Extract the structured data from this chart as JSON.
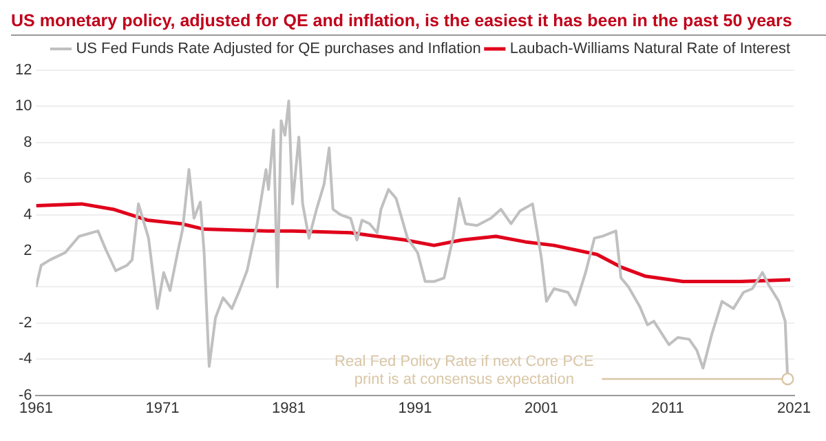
{
  "chart_data": {
    "type": "line",
    "title": "US monetary policy, adjusted for QE and inflation, is the easiest it has been in the past 50 years",
    "xlim": [
      1961,
      2021
    ],
    "xticks": [
      1961,
      1971,
      1981,
      1991,
      2001,
      2011,
      2021
    ],
    "ylim": [
      -6,
      12
    ],
    "yticks": [
      -6,
      -4,
      -2,
      {
        "value": 0,
        "label": null
      },
      2,
      4,
      6,
      8,
      10,
      12
    ],
    "grid": "y",
    "legend": "top right",
    "marker": "none",
    "line_style": "solid",
    "series": [
      {
        "name": "US Fed Funds Rate Adjusted for QE purchases and Inflation",
        "color": "#c0c0c0",
        "x": [
          1961,
          1961.4,
          1962.1,
          1963.3,
          1964.4,
          1965.9,
          1966.5,
          1967.3,
          1968.2,
          1968.6,
          1969.1,
          1969.9,
          1970.6,
          1971.1,
          1971.6,
          1972.2,
          1972.6,
          1973.1,
          1973.5,
          1974.0,
          1974.3,
          1974.7,
          1975.2,
          1975.8,
          1976.5,
          1977.1,
          1977.7,
          1978.5,
          1979.2,
          1979.4,
          1979.8,
          1980.1,
          1980.4,
          1980.7,
          1981.0,
          1981.3,
          1981.8,
          1982.1,
          1982.6,
          1983.2,
          1983.8,
          1984.2,
          1984.5,
          1985.1,
          1985.9,
          1986.4,
          1986.8,
          1987.4,
          1988.0,
          1988.3,
          1988.9,
          1989.5,
          1990.4,
          1991.2,
          1991.8,
          1992.5,
          1993.3,
          1994.0,
          1994.5,
          1995.0,
          1995.9,
          1997.0,
          1997.8,
          1998.6,
          1999.3,
          2000.3,
          2001.0,
          2001.4,
          2002.0,
          2003.1,
          2003.7,
          2004.5,
          2005.2,
          2005.8,
          2006.9,
          2007.3,
          2007.9,
          2008.8,
          2009.4,
          2009.9,
          2011.1,
          2011.8,
          2012.7,
          2013.3,
          2013.8,
          2014.5,
          2015.3,
          2016.2,
          2017.0,
          2017.7,
          2018.5,
          2019.0,
          2019.8,
          2020.3,
          2020.5
        ],
        "values": [
          0,
          1.2,
          1.5,
          1.9,
          2.8,
          3.1,
          2.1,
          0.9,
          1.2,
          1.5,
          4.6,
          2.7,
          -1.2,
          0.8,
          -0.2,
          1.9,
          3.2,
          6.5,
          3.8,
          4.7,
          1.9,
          -4.4,
          -1.7,
          -0.6,
          -1.2,
          -0.2,
          0.9,
          3.5,
          6.5,
          5.4,
          8.7,
          0,
          9.2,
          8.4,
          10.3,
          4.6,
          8.3,
          4.6,
          2.7,
          4.3,
          5.7,
          7.7,
          4.3,
          4.0,
          3.8,
          2.6,
          3.7,
          3.5,
          3.0,
          4.3,
          5.4,
          4.9,
          2.7,
          1.9,
          0.3,
          0.3,
          0.5,
          2.7,
          4.9,
          3.5,
          3.4,
          3.8,
          4.3,
          3.5,
          4.2,
          4.6,
          1.6,
          -0.8,
          -0.1,
          -0.3,
          -1.0,
          0.8,
          2.7,
          2.8,
          3.1,
          0.5,
          0,
          -1.1,
          -2.1,
          -1.9,
          -3.2,
          -2.8,
          -2.9,
          -3.5,
          -4.5,
          -2.6,
          -0.8,
          -1.2,
          -0.3,
          -0.1,
          0.8,
          0.1,
          -0.8,
          -1.9,
          -5.2
        ]
      },
      {
        "name": "Laubach-Williams Natural Rate of Interest",
        "color": "#e0001b",
        "x": [
          1961,
          1964.6,
          1967.1,
          1969.8,
          1972.5,
          1974.3,
          1979.3,
          1981.3,
          1985.9,
          1988.0,
          1990.2,
          1992.5,
          1994.7,
          1997.4,
          1999.7,
          2002.0,
          2005.4,
          2007.3,
          2009.2,
          2012.2,
          2016.8,
          2020.7
        ],
        "values": [
          4.5,
          4.6,
          4.3,
          3.7,
          3.5,
          3.2,
          3.1,
          3.1,
          3.0,
          2.8,
          2.6,
          2.3,
          2.6,
          2.8,
          2.5,
          2.3,
          1.8,
          1.1,
          0.6,
          0.3,
          0.3,
          0.4
        ]
      }
    ],
    "annotations": [
      {
        "text": "Real Fed Policy Rate if next Core PCE print is at consensus expectation",
        "x": 2020.5,
        "y": -5.1
      }
    ]
  }
}
